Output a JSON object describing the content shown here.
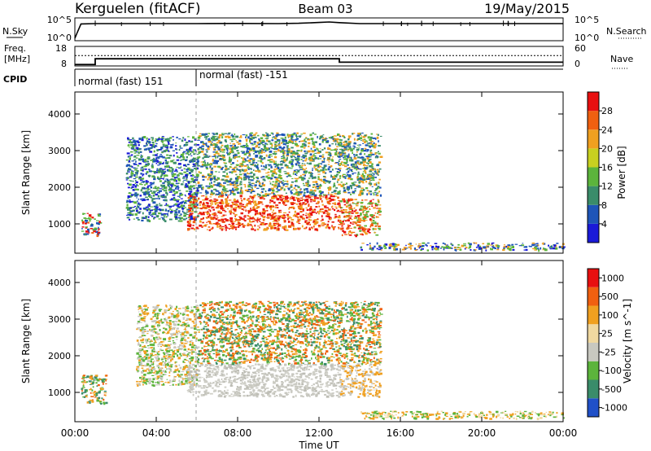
{
  "header": {
    "station": "Kerguelen (fitACF)",
    "beam": "Beam 03",
    "date": "19/May/2015"
  },
  "chart_data": [
    {
      "type": "line",
      "panel": "noise",
      "left_label": "N.Sky",
      "right_label": "N.Search",
      "left_ticks": [
        "10^5",
        "10^0"
      ],
      "right_ticks": [
        "10^5",
        "10^0"
      ],
      "x_hours": [
        0,
        0.1,
        0.3,
        1,
        2,
        4,
        6,
        8,
        10,
        11,
        12,
        12.5,
        13,
        14,
        16,
        20,
        24
      ],
      "n_sky": [
        0.0,
        0.3,
        0.88,
        0.9,
        0.9,
        0.9,
        0.9,
        0.91,
        0.9,
        0.92,
        0.97,
        1.0,
        0.96,
        0.9,
        0.9,
        0.9,
        0.9
      ]
    },
    {
      "type": "line",
      "panel": "frequency",
      "left_label_1": "Freq.",
      "left_label_2": "[MHz]",
      "right_label": "Nave",
      "left_ticks": [
        "18",
        "8"
      ],
      "right_ticks": [
        "60",
        "0"
      ],
      "freq_step_hours": [
        0,
        1.0,
        13.0,
        24
      ],
      "freq_mhz": [
        8.4,
        12.1,
        9.9,
        9.9
      ],
      "nave_level": 37
    },
    {
      "panel": "cpid",
      "label": "CPID",
      "segments": [
        {
          "start_hour": 0,
          "text": "normal (fast) 151"
        },
        {
          "start_hour": 6,
          "text": "normal (fast) -151"
        }
      ]
    },
    {
      "type": "heatmap",
      "panel": "power",
      "ylabel": "Slant Range [km]",
      "yticks": [
        "1000",
        "2000",
        "3000",
        "4000"
      ],
      "colorbar_label": "Power [dB]",
      "colorbar_ticks": [
        "4",
        "8",
        "12",
        "16",
        "20",
        "24",
        "28"
      ],
      "colorbar_colors": [
        "#1a1ad8",
        "#1e55b8",
        "#3a8c6a",
        "#5cb43c",
        "#c8d020",
        "#f0a020",
        "#f06010",
        "#e81010"
      ],
      "scatter_regions": [
        {
          "t": [
            0.3,
            1.2
          ],
          "r": [
            700,
            1300
          ],
          "colors": [
            "#e81010",
            "#f06010",
            "#5cb43c",
            "#1e55b8"
          ]
        },
        {
          "t": [
            2.5,
            6
          ],
          "r": [
            1100,
            3400
          ],
          "colors": [
            "#1e55b8",
            "#1a1ad8",
            "#5cb43c",
            "#3a8c6a"
          ]
        },
        {
          "t": [
            5.5,
            13
          ],
          "r": [
            850,
            1800
          ],
          "colors": [
            "#e81010",
            "#f06010",
            "#e82010",
            "#f0a020"
          ]
        },
        {
          "t": [
            13,
            15
          ],
          "r": [
            700,
            1700
          ],
          "colors": [
            "#e81010",
            "#f06010",
            "#f0a020",
            "#5cb43c"
          ]
        },
        {
          "t": [
            6,
            15
          ],
          "r": [
            1800,
            3500
          ],
          "colors": [
            "#5cb43c",
            "#3a8c6a",
            "#f0a020",
            "#1e55b8"
          ]
        },
        {
          "t": [
            14,
            24
          ],
          "r": [
            300,
            500
          ],
          "colors": [
            "#1a1ad8",
            "#5cb43c",
            "#f0a020",
            "#1e55b8"
          ]
        }
      ]
    },
    {
      "type": "heatmap",
      "panel": "velocity",
      "ylabel": "Slant Range [km]",
      "yticks": [
        "1000",
        "2000",
        "3000",
        "4000"
      ],
      "colorbar_label": "Velocity [m s^-1]",
      "colorbar_ticks": [
        "1000",
        "500",
        "100",
        "25",
        "-25",
        "-100",
        "-500",
        "-1000"
      ],
      "colorbar_colors": [
        "#2050c8",
        "#3a8c6a",
        "#5cb43c",
        "#c8c8c0",
        "#f0d8a0",
        "#f0a020",
        "#f06010",
        "#e81010"
      ],
      "scatter_regions": [
        {
          "t": [
            0.3,
            1.5
          ],
          "r": [
            700,
            1500
          ],
          "colors": [
            "#f06010",
            "#5cb43c",
            "#3a8c6a",
            "#f0a020"
          ]
        },
        {
          "t": [
            3,
            6
          ],
          "r": [
            1200,
            3400
          ],
          "colors": [
            "#c8c8c0",
            "#5cb43c",
            "#f0a020"
          ]
        },
        {
          "t": [
            5.5,
            13
          ],
          "r": [
            900,
            1800
          ],
          "colors": [
            "#c8c8c0",
            "#c8c8c0",
            "#bdbdb5",
            "#d0d0c8"
          ]
        },
        {
          "t": [
            13,
            15
          ],
          "r": [
            900,
            1800
          ],
          "colors": [
            "#c8c8c0",
            "#f0a020"
          ]
        },
        {
          "t": [
            6,
            15
          ],
          "r": [
            1800,
            3500
          ],
          "colors": [
            "#5cb43c",
            "#f0a020",
            "#3a8c6a",
            "#f06010"
          ]
        },
        {
          "t": [
            14,
            24
          ],
          "r": [
            300,
            500
          ],
          "colors": [
            "#f0d8a0",
            "#f0a020",
            "#5cb43c"
          ]
        }
      ]
    }
  ],
  "xaxis": {
    "label": "Time UT",
    "ticks": [
      "00:00",
      "04:00",
      "08:00",
      "12:00",
      "16:00",
      "20:00",
      "00:00"
    ]
  }
}
